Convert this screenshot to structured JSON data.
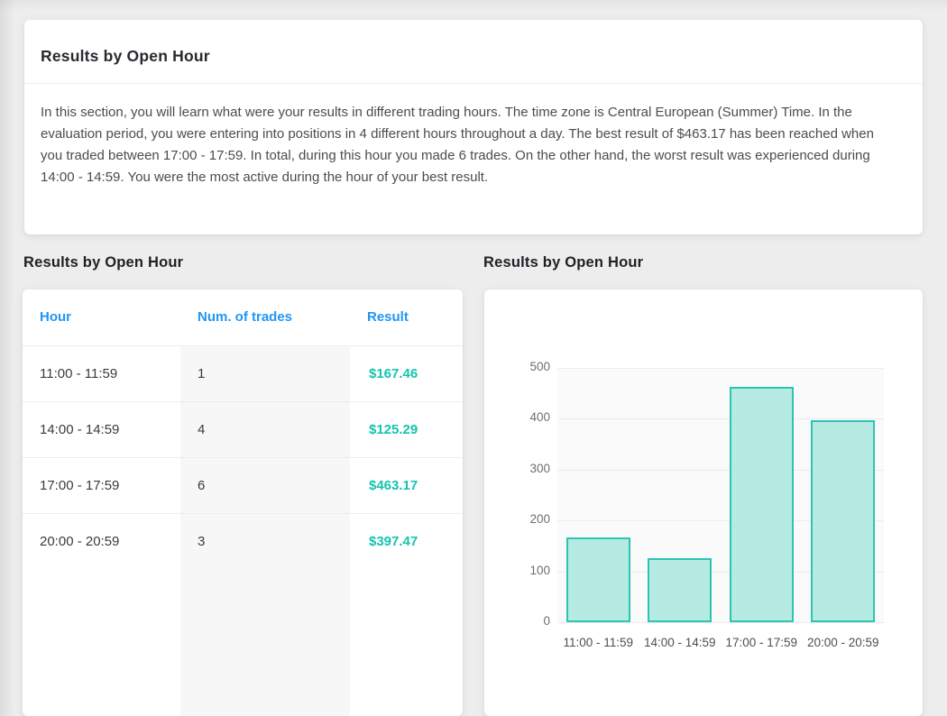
{
  "summary_card": {
    "title": "Results by Open Hour",
    "body": "In this section, you will learn what were your results in different trading hours. The time zone is Central European (Summer) Time. In the evaluation period, you were entering into positions in 4 different hours throughout a day. The best result of $463.17 has been reached when you traded between 17:00 - 17:59. In total, during this hour you made 6 trades. On the other hand, the worst result was experienced during 14:00 - 14:59. You were the most active during the hour of your best result."
  },
  "table_section": {
    "title": "Results by Open Hour",
    "columns": [
      "Hour",
      "Num. of trades",
      "Result"
    ],
    "rows": [
      {
        "hour": "11:00 - 11:59",
        "trades": "1",
        "result": "$167.46"
      },
      {
        "hour": "14:00 - 14:59",
        "trades": "4",
        "result": "$125.29"
      },
      {
        "hour": "17:00 - 17:59",
        "trades": "6",
        "result": "$463.17"
      },
      {
        "hour": "20:00 - 20:59",
        "trades": "3",
        "result": "$397.47"
      }
    ]
  },
  "chart_section": {
    "title": "Results by Open Hour"
  },
  "chart_data": {
    "type": "bar",
    "title": "Results by Open Hour",
    "categories": [
      "11:00 - 11:59",
      "14:00 - 14:59",
      "17:00 - 17:59",
      "20:00 - 20:59"
    ],
    "values": [
      167.46,
      125.29,
      463.17,
      397.47
    ],
    "xlabel": "",
    "ylabel": "",
    "ylim": [
      0,
      500
    ],
    "yticks": [
      0,
      100,
      200,
      300,
      400,
      500
    ],
    "grid": true,
    "legend": false,
    "bar_fill": "#b5ebe3",
    "bar_border": "#2cc5b2",
    "plot_bg": "#fafafa"
  },
  "colors": {
    "accent_blue": "#2196f3",
    "accent_teal": "#14c4b1",
    "page_bg": "#ededed"
  }
}
